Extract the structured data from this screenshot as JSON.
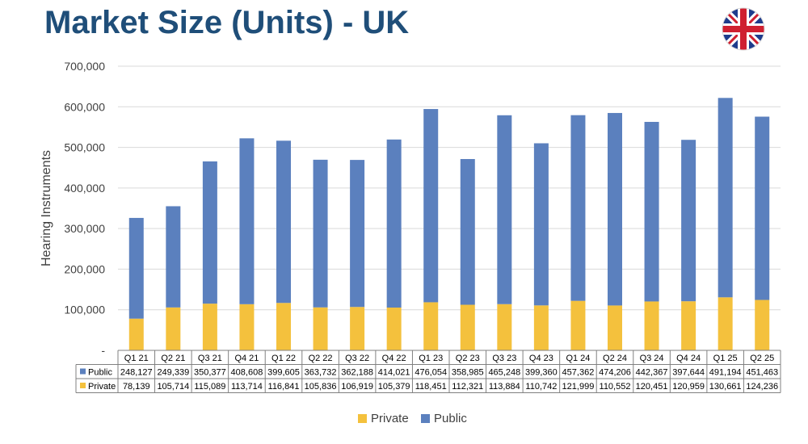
{
  "title": "Market Size (Units) - UK",
  "flag_icon": "uk-flag-icon",
  "colors": {
    "title": "#1f4e79",
    "private": "#f4c13d",
    "public": "#5b80be"
  },
  "chart_data": {
    "type": "bar",
    "stacked": true,
    "title": "",
    "xlabel": "",
    "ylabel": "Hearing Instruments",
    "ylim": [
      0,
      700000
    ],
    "y_ticks": [
      "-",
      "100,000",
      "200,000",
      "300,000",
      "400,000",
      "500,000",
      "600,000",
      "700,000"
    ],
    "grid": true,
    "legend_position": "bottom",
    "categories": [
      "Q1 21",
      "Q2 21",
      "Q3 21",
      "Q4 21",
      "Q1 22",
      "Q2 22",
      "Q3 22",
      "Q4 22",
      "Q1 23",
      "Q2 23",
      "Q3 23",
      "Q4 23",
      "Q1 24",
      "Q2 24",
      "Q3 24",
      "Q4 24",
      "Q1 25",
      "Q2 25"
    ],
    "series": [
      {
        "name": "Private",
        "color": "#f4c13d",
        "values": [
          78139,
          105714,
          115089,
          113714,
          116841,
          105836,
          106919,
          105379,
          118451,
          112321,
          113884,
          110742,
          121999,
          110552,
          120451,
          120959,
          130661,
          124236
        ],
        "labels": [
          "78,139",
          "105,714",
          "115,089",
          "113,714",
          "116,841",
          "105,836",
          "106,919",
          "105,379",
          "118,451",
          "112,321",
          "113,884",
          "110,742",
          "121,999",
          "110,552",
          "120,451",
          "120,959",
          "130,661",
          "124,236"
        ]
      },
      {
        "name": "Public",
        "color": "#5b80be",
        "values": [
          248127,
          249339,
          350377,
          408608,
          399605,
          363732,
          362188,
          414021,
          476054,
          358985,
          465248,
          399360,
          457362,
          474206,
          442367,
          397644,
          491194,
          451463
        ],
        "labels": [
          "248,127",
          "249,339",
          "350,377",
          "408,608",
          "399,605",
          "363,732",
          "362,188",
          "414,021",
          "476,054",
          "358,985",
          "465,248",
          "399,360",
          "457,362",
          "474,206",
          "442,367",
          "397,644",
          "491,194",
          "451,463"
        ]
      }
    ]
  }
}
